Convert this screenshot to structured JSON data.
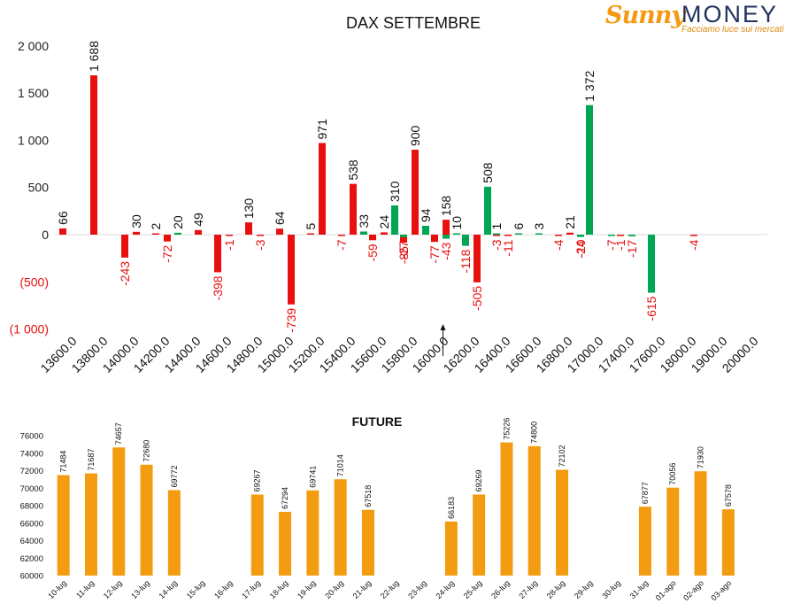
{
  "logo": {
    "brand_a": "Sunny",
    "brand_b": "MONEY",
    "tagline": "Facciamo luce sui mercati"
  },
  "colors": {
    "call": "#e8100f",
    "put": "#00a651",
    "future": "#f39c12",
    "loss_label": "#e8100f",
    "axis": "#222222"
  },
  "chart_data": [
    {
      "type": "bar",
      "title": "DAX SETTEMBRE",
      "ylim": [
        -1000,
        2000
      ],
      "yticks": [
        {
          "value": 2000,
          "label": "2 000",
          "color": "#222222"
        },
        {
          "value": 1500,
          "label": "1 500",
          "color": "#222222"
        },
        {
          "value": 1000,
          "label": "1 000",
          "color": "#222222"
        },
        {
          "value": 500,
          "label": "500",
          "color": "#222222"
        },
        {
          "value": 0,
          "label": "0",
          "color": "#222222"
        },
        {
          "value": -500,
          "label": "(500)",
          "color": "#e8100f"
        },
        {
          "value": -1000,
          "label": "(1 000)",
          "color": "#e8100f"
        }
      ],
      "categories": [
        "13600.0",
        "13800.0",
        "14000.0",
        "14200.0",
        "14400.0",
        "14600.0",
        "14800.0",
        "15000.0",
        "15200.0",
        "15400.0",
        "15600.0",
        "15800.0",
        "16000.0",
        "16200.0",
        "16400.0",
        "16600.0",
        "16800.0",
        "17000.0",
        "17400.0",
        "17600.0",
        "18000.0",
        "19000.0",
        "20000.0"
      ],
      "series": [
        {
          "color": "#e8100f",
          "values": [
            {
              "i": 0,
              "o": 0,
              "v": 66,
              "label": "66"
            },
            {
              "i": 1,
              "o": 0,
              "v": 1688,
              "label": "1 688"
            },
            {
              "i": 2,
              "o": 0,
              "v": -243,
              "label": "-243"
            },
            {
              "i": 2,
              "o": 1,
              "v": 30,
              "label": "30"
            },
            {
              "i": 3,
              "o": 0,
              "v": 2,
              "label": "2"
            },
            {
              "i": 3,
              "o": 1,
              "v": -72,
              "label": "-72"
            },
            {
              "i": 4,
              "o": 1,
              "v": 49,
              "label": "49"
            },
            {
              "i": 5,
              "o": 0,
              "v": -398,
              "label": "-398"
            },
            {
              "i": 5,
              "o": 1,
              "v": -1,
              "label": "-1"
            },
            {
              "i": 6,
              "o": 0,
              "v": 130,
              "label": "130"
            },
            {
              "i": 6,
              "o": 1,
              "v": -3,
              "label": "-3"
            },
            {
              "i": 7,
              "o": 0,
              "v": 64,
              "label": "64"
            },
            {
              "i": 7,
              "o": 1,
              "v": -739,
              "label": "-739"
            },
            {
              "i": 8,
              "o": 0,
              "v": 5,
              "label": "5"
            },
            {
              "i": 8,
              "o": 1,
              "v": 971,
              "label": "971"
            },
            {
              "i": 9,
              "o": 0,
              "v": -7,
              "label": "-7"
            },
            {
              "i": 9,
              "o": 1,
              "v": 538,
              "label": "538"
            },
            {
              "i": 10,
              "o": 0,
              "v": -59,
              "label": "-59"
            },
            {
              "i": 10,
              "o": 1,
              "v": 24,
              "label": "24"
            },
            {
              "i": 11,
              "o": 0,
              "v": -85,
              "label": "-85"
            },
            {
              "i": 11,
              "o": 1,
              "v": 900,
              "label": "900"
            },
            {
              "i": 12,
              "o": 0,
              "v": -77,
              "label": "-77"
            },
            {
              "i": 12,
              "o": 1,
              "v": 158,
              "label": "158"
            },
            {
              "i": 13,
              "o": 1,
              "v": -505,
              "label": "-505"
            },
            {
              "i": 14,
              "o": 0,
              "v": -3,
              "label": "-3"
            },
            {
              "i": 14,
              "o": 1,
              "v": -11,
              "label": "-11"
            },
            {
              "i": 16,
              "o": 0,
              "v": -4,
              "label": "-4"
            },
            {
              "i": 16,
              "o": 1,
              "v": 21,
              "label": "21"
            },
            {
              "i": 16,
              "o": 2,
              "v": -10,
              "label": "-10"
            },
            {
              "i": 18,
              "o": 0,
              "v": -1,
              "label": "-1"
            },
            {
              "i": 20,
              "o": 1,
              "v": -4,
              "label": "-4"
            }
          ]
        },
        {
          "color": "#00a651",
          "values": [
            {
              "i": 3,
              "o": 2,
              "v": 20,
              "label": "20"
            },
            {
              "i": 9,
              "o": 2,
              "v": 33,
              "label": "33"
            },
            {
              "i": 10,
              "o": 2,
              "v": 310,
              "label": "310"
            },
            {
              "i": 11,
              "o": 0,
              "v": -27,
              "label": "-27"
            },
            {
              "i": 11,
              "o": 2,
              "v": 94,
              "label": "94"
            },
            {
              "i": 12,
              "o": 1,
              "v": -43,
              "label": "-43"
            },
            {
              "i": 12,
              "o": 2,
              "v": 10,
              "label": "10"
            },
            {
              "i": 13,
              "o": 0,
              "v": -118,
              "label": "-118"
            },
            {
              "i": 13,
              "o": 2,
              "v": 508,
              "label": "508"
            },
            {
              "i": 14,
              "o": 0,
              "v": 1,
              "label": "1"
            },
            {
              "i": 14,
              "o": 2,
              "v": 6,
              "label": "6"
            },
            {
              "i": 15,
              "o": 1,
              "v": 3,
              "label": "3"
            },
            {
              "i": 16,
              "o": 2,
              "v": -24,
              "label": "-24"
            },
            {
              "i": 17,
              "o": 0,
              "v": 1372,
              "label": "1 372"
            },
            {
              "i": 17,
              "o": 2,
              "v": -7,
              "label": "-7"
            },
            {
              "i": 18,
              "o": 1,
              "v": -17,
              "label": "-17"
            },
            {
              "i": 19,
              "o": 0,
              "v": -615,
              "label": "-615"
            }
          ]
        }
      ],
      "marker_at": "16000.0"
    },
    {
      "type": "bar",
      "title": "FUTURE",
      "ylim": [
        60000,
        76000
      ],
      "yticks": [
        60000,
        62000,
        64000,
        66000,
        68000,
        70000,
        72000,
        74000,
        76000
      ],
      "categories": [
        "10-lug",
        "11-lug",
        "12-lug",
        "13-lug",
        "14-lug",
        "15-lug",
        "16-lug",
        "17-lug",
        "18-lug",
        "19-lug",
        "20-lug",
        "21-lug",
        "22-lug",
        "23-lug",
        "24-lug",
        "25-lug",
        "26-lug",
        "27-lug",
        "28-lug",
        "29-lug",
        "30-lug",
        "31-lug",
        "01-ago",
        "02-ago",
        "03-ago"
      ],
      "values": [
        71484,
        71687,
        74657,
        72680,
        69772,
        null,
        null,
        69267,
        67294,
        69741,
        71014,
        67518,
        null,
        null,
        66183,
        69269,
        75226,
        74800,
        72102,
        null,
        null,
        67877,
        70056,
        71930,
        67578
      ]
    }
  ]
}
